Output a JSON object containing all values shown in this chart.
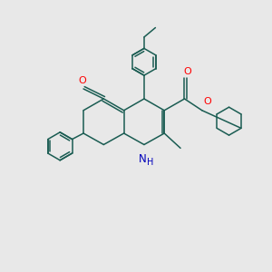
{
  "bg_color": "#e8e8e8",
  "bond_color": "#1a5c52",
  "O_color": "#ff0000",
  "N_color": "#0000bb",
  "lw": 1.1,
  "figsize": [
    3.0,
    3.0
  ],
  "dpi": 100,
  "xlim": [
    0,
    10
  ],
  "ylim": [
    0,
    10
  ]
}
